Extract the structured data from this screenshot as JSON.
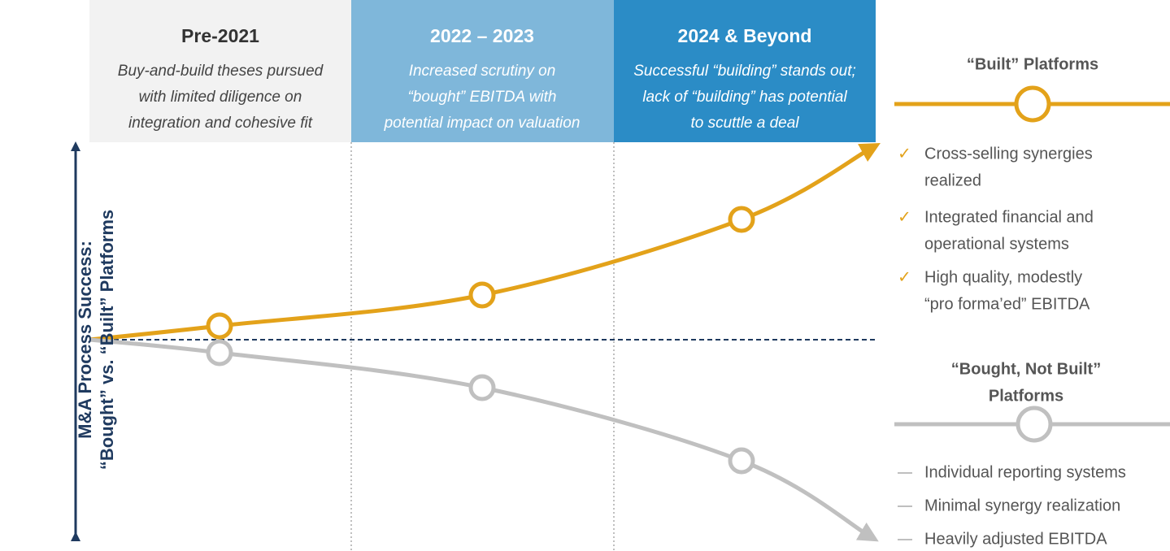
{
  "y_axis_label": [
    "M&A Process Success:",
    "“Bought” vs. “Built” Platforms"
  ],
  "periods": [
    {
      "title": "Pre-2021",
      "description": [
        "Buy-and-build theses pursued",
        "with limited diligence on",
        "integration and cohesive fit"
      ]
    },
    {
      "title": "2022 – 2023",
      "description": [
        "Increased scrutiny on",
        "“bought” EBITDA with",
        "potential impact on valuation"
      ]
    },
    {
      "title": "2024 & Beyond",
      "description": [
        "Successful “building” stands out;",
        "lack of “building” has potential",
        "to scuttle a deal"
      ]
    }
  ],
  "built": {
    "title": "“Built” Platforms",
    "items": [
      [
        "Cross-selling synergies",
        "realized"
      ],
      [
        "Integrated financial and",
        "operational systems"
      ],
      [
        "High quality, modestly",
        "“pro forma’ed” EBITDA"
      ]
    ]
  },
  "bought": {
    "title": [
      "“Bought, Not Built”",
      "Platforms"
    ],
    "items": [
      "Individual reporting systems",
      "Minimal synergy realization",
      "Heavily adjusted EBITDA"
    ]
  }
}
